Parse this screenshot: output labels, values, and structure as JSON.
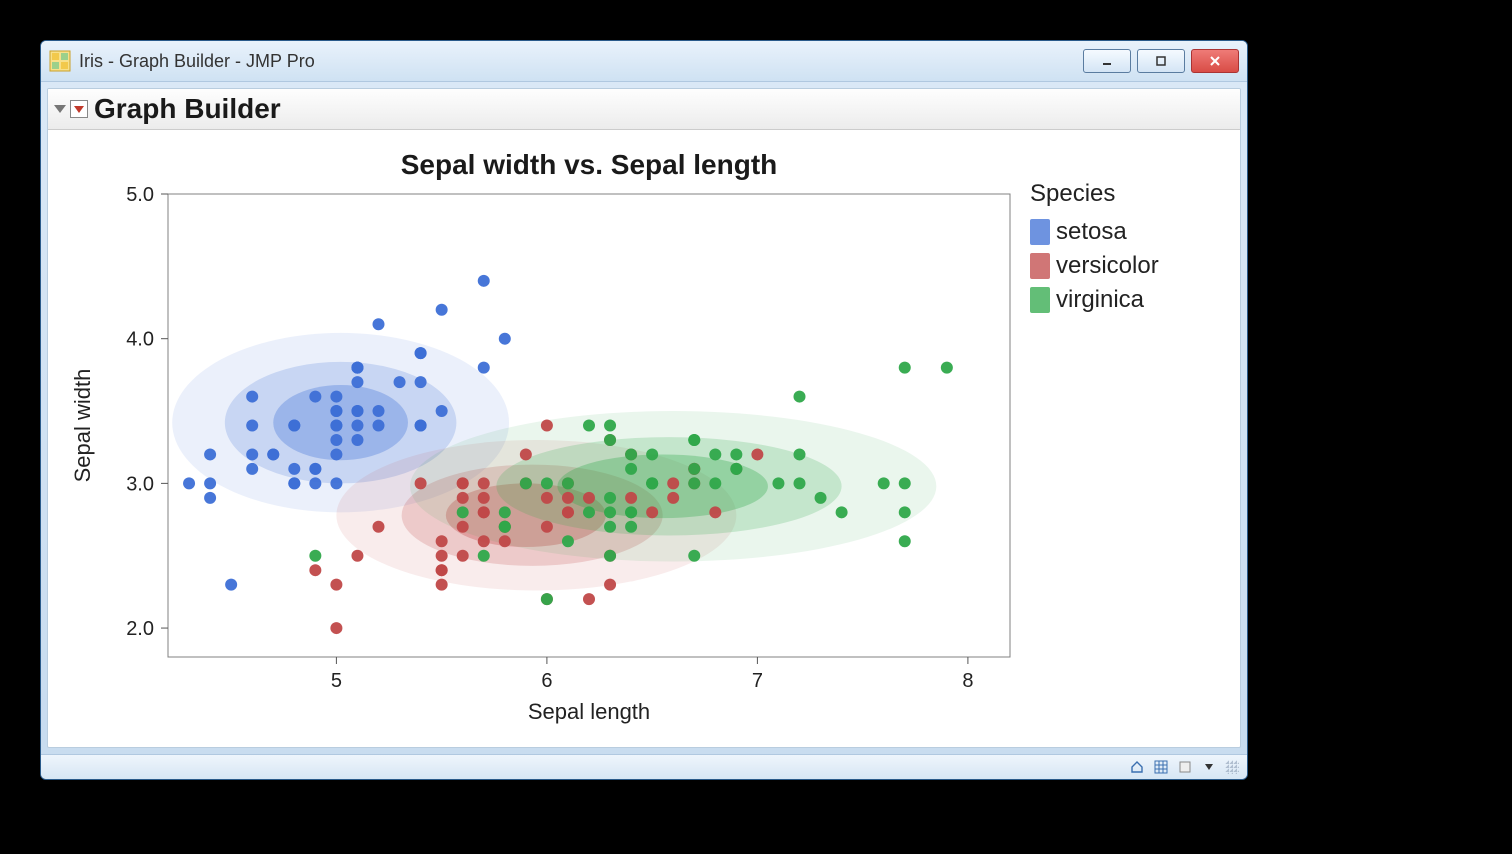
{
  "window": {
    "title": "Iris - Graph Builder - JMP Pro"
  },
  "section": {
    "title": "Graph Builder"
  },
  "chart": {
    "type": "scatter-density",
    "title": "Sepal width vs. Sepal length",
    "title_fontsize": 28,
    "xlabel": "Sepal length",
    "ylabel": "Sepal width",
    "label_fontsize": 22,
    "tick_fontsize": 20,
    "xlim": [
      4.2,
      8.2
    ],
    "ylim": [
      1.8,
      5.0
    ],
    "xticks": [
      5,
      6,
      7,
      8
    ],
    "yticks": [
      2.0,
      3.0,
      4.0,
      5.0
    ],
    "marker_radius": 6,
    "background_color": "#ffffff",
    "border_color": "#808080",
    "density_opacities": [
      0.1,
      0.2,
      0.32
    ],
    "series": {
      "setosa": {
        "label": "setosa",
        "color": "#3d6fd6",
        "points": [
          [
            5.1,
            3.5
          ],
          [
            4.9,
            3.0
          ],
          [
            4.7,
            3.2
          ],
          [
            4.6,
            3.1
          ],
          [
            5.0,
            3.6
          ],
          [
            5.4,
            3.9
          ],
          [
            4.6,
            3.4
          ],
          [
            5.0,
            3.4
          ],
          [
            4.4,
            2.9
          ],
          [
            4.9,
            3.1
          ],
          [
            5.4,
            3.7
          ],
          [
            4.8,
            3.4
          ],
          [
            4.8,
            3.0
          ],
          [
            4.3,
            3.0
          ],
          [
            5.8,
            4.0
          ],
          [
            5.7,
            4.4
          ],
          [
            5.4,
            3.9
          ],
          [
            5.1,
            3.5
          ],
          [
            5.7,
            3.8
          ],
          [
            5.1,
            3.8
          ],
          [
            5.4,
            3.4
          ],
          [
            5.1,
            3.7
          ],
          [
            4.6,
            3.6
          ],
          [
            5.1,
            3.3
          ],
          [
            4.8,
            3.4
          ],
          [
            5.0,
            3.0
          ],
          [
            5.0,
            3.4
          ],
          [
            5.2,
            3.5
          ],
          [
            5.2,
            3.4
          ],
          [
            4.7,
            3.2
          ],
          [
            4.8,
            3.1
          ],
          [
            5.4,
            3.4
          ],
          [
            5.2,
            4.1
          ],
          [
            5.5,
            4.2
          ],
          [
            4.9,
            3.1
          ],
          [
            5.0,
            3.2
          ],
          [
            5.5,
            3.5
          ],
          [
            4.9,
            3.6
          ],
          [
            4.4,
            3.0
          ],
          [
            5.1,
            3.4
          ],
          [
            5.0,
            3.5
          ],
          [
            4.5,
            2.3
          ],
          [
            4.4,
            3.2
          ],
          [
            5.0,
            3.5
          ],
          [
            5.1,
            3.8
          ],
          [
            4.8,
            3.0
          ],
          [
            5.1,
            3.8
          ],
          [
            4.6,
            3.2
          ],
          [
            5.3,
            3.7
          ],
          [
            5.0,
            3.3
          ]
        ],
        "density": {
          "levels": [
            {
              "cx": 5.02,
              "cy": 3.42,
              "rx": 0.8,
              "ry": 0.62
            },
            {
              "cx": 5.02,
              "cy": 3.42,
              "rx": 0.55,
              "ry": 0.42
            },
            {
              "cx": 5.02,
              "cy": 3.42,
              "rx": 0.32,
              "ry": 0.26
            }
          ]
        }
      },
      "versicolor": {
        "label": "versicolor",
        "color": "#c04848",
        "points": [
          [
            7.0,
            3.2
          ],
          [
            6.4,
            3.2
          ],
          [
            6.9,
            3.1
          ],
          [
            5.5,
            2.3
          ],
          [
            6.5,
            2.8
          ],
          [
            5.7,
            2.8
          ],
          [
            6.3,
            3.3
          ],
          [
            4.9,
            2.4
          ],
          [
            6.6,
            2.9
          ],
          [
            5.2,
            2.7
          ],
          [
            5.0,
            2.0
          ],
          [
            5.9,
            3.0
          ],
          [
            6.0,
            2.2
          ],
          [
            6.1,
            2.9
          ],
          [
            5.6,
            2.9
          ],
          [
            6.7,
            3.1
          ],
          [
            5.6,
            3.0
          ],
          [
            5.8,
            2.7
          ],
          [
            6.2,
            2.2
          ],
          [
            5.6,
            2.5
          ],
          [
            5.9,
            3.2
          ],
          [
            6.1,
            2.8
          ],
          [
            6.3,
            2.5
          ],
          [
            6.1,
            2.8
          ],
          [
            6.4,
            2.9
          ],
          [
            6.6,
            3.0
          ],
          [
            6.8,
            2.8
          ],
          [
            6.7,
            3.0
          ],
          [
            6.0,
            2.9
          ],
          [
            5.7,
            2.6
          ],
          [
            5.5,
            2.4
          ],
          [
            5.5,
            2.4
          ],
          [
            5.8,
            2.7
          ],
          [
            6.0,
            2.7
          ],
          [
            5.4,
            3.0
          ],
          [
            6.0,
            3.4
          ],
          [
            6.7,
            3.1
          ],
          [
            6.3,
            2.3
          ],
          [
            5.6,
            3.0
          ],
          [
            5.5,
            2.5
          ],
          [
            5.5,
            2.6
          ],
          [
            6.1,
            3.0
          ],
          [
            5.8,
            2.6
          ],
          [
            5.0,
            2.3
          ],
          [
            5.6,
            2.7
          ],
          [
            5.7,
            3.0
          ],
          [
            5.7,
            2.9
          ],
          [
            6.2,
            2.9
          ],
          [
            5.1,
            2.5
          ],
          [
            5.7,
            2.8
          ]
        ],
        "density": {
          "levels": [
            {
              "cx": 5.95,
              "cy": 2.78,
              "rx": 0.95,
              "ry": 0.52
            },
            {
              "cx": 5.93,
              "cy": 2.78,
              "rx": 0.62,
              "ry": 0.35
            },
            {
              "cx": 5.9,
              "cy": 2.78,
              "rx": 0.38,
              "ry": 0.22
            }
          ]
        }
      },
      "virginica": {
        "label": "virginica",
        "color": "#2fa84a",
        "points": [
          [
            6.3,
            3.3
          ],
          [
            5.8,
            2.7
          ],
          [
            7.1,
            3.0
          ],
          [
            6.3,
            2.9
          ],
          [
            6.5,
            3.0
          ],
          [
            7.6,
            3.0
          ],
          [
            4.9,
            2.5
          ],
          [
            7.3,
            2.9
          ],
          [
            6.7,
            2.5
          ],
          [
            7.2,
            3.6
          ],
          [
            6.5,
            3.2
          ],
          [
            6.4,
            2.7
          ],
          [
            6.8,
            3.0
          ],
          [
            5.7,
            2.5
          ],
          [
            5.8,
            2.8
          ],
          [
            6.4,
            3.2
          ],
          [
            6.5,
            3.0
          ],
          [
            7.7,
            3.8
          ],
          [
            7.7,
            2.6
          ],
          [
            6.0,
            2.2
          ],
          [
            6.9,
            3.2
          ],
          [
            5.6,
            2.8
          ],
          [
            7.7,
            2.8
          ],
          [
            6.3,
            2.7
          ],
          [
            6.7,
            3.3
          ],
          [
            7.2,
            3.2
          ],
          [
            6.2,
            2.8
          ],
          [
            6.1,
            3.0
          ],
          [
            6.4,
            2.8
          ],
          [
            7.2,
            3.0
          ],
          [
            7.4,
            2.8
          ],
          [
            7.9,
            3.8
          ],
          [
            6.4,
            2.8
          ],
          [
            6.3,
            2.8
          ],
          [
            6.1,
            2.6
          ],
          [
            7.7,
            3.0
          ],
          [
            6.3,
            3.4
          ],
          [
            6.4,
            3.1
          ],
          [
            6.0,
            3.0
          ],
          [
            6.9,
            3.1
          ],
          [
            6.7,
            3.1
          ],
          [
            6.9,
            3.1
          ],
          [
            5.8,
            2.7
          ],
          [
            6.8,
            3.2
          ],
          [
            6.7,
            3.3
          ],
          [
            6.7,
            3.0
          ],
          [
            6.3,
            2.5
          ],
          [
            6.5,
            3.0
          ],
          [
            6.2,
            3.4
          ],
          [
            5.9,
            3.0
          ]
        ],
        "density": {
          "levels": [
            {
              "cx": 6.6,
              "cy": 2.98,
              "rx": 1.25,
              "ry": 0.52
            },
            {
              "cx": 6.58,
              "cy": 2.98,
              "rx": 0.82,
              "ry": 0.34
            },
            {
              "cx": 6.55,
              "cy": 2.98,
              "rx": 0.5,
              "ry": 0.22
            }
          ]
        }
      }
    },
    "series_order": [
      "setosa",
      "versicolor",
      "virginica"
    ]
  },
  "legend": {
    "title": "Species"
  }
}
